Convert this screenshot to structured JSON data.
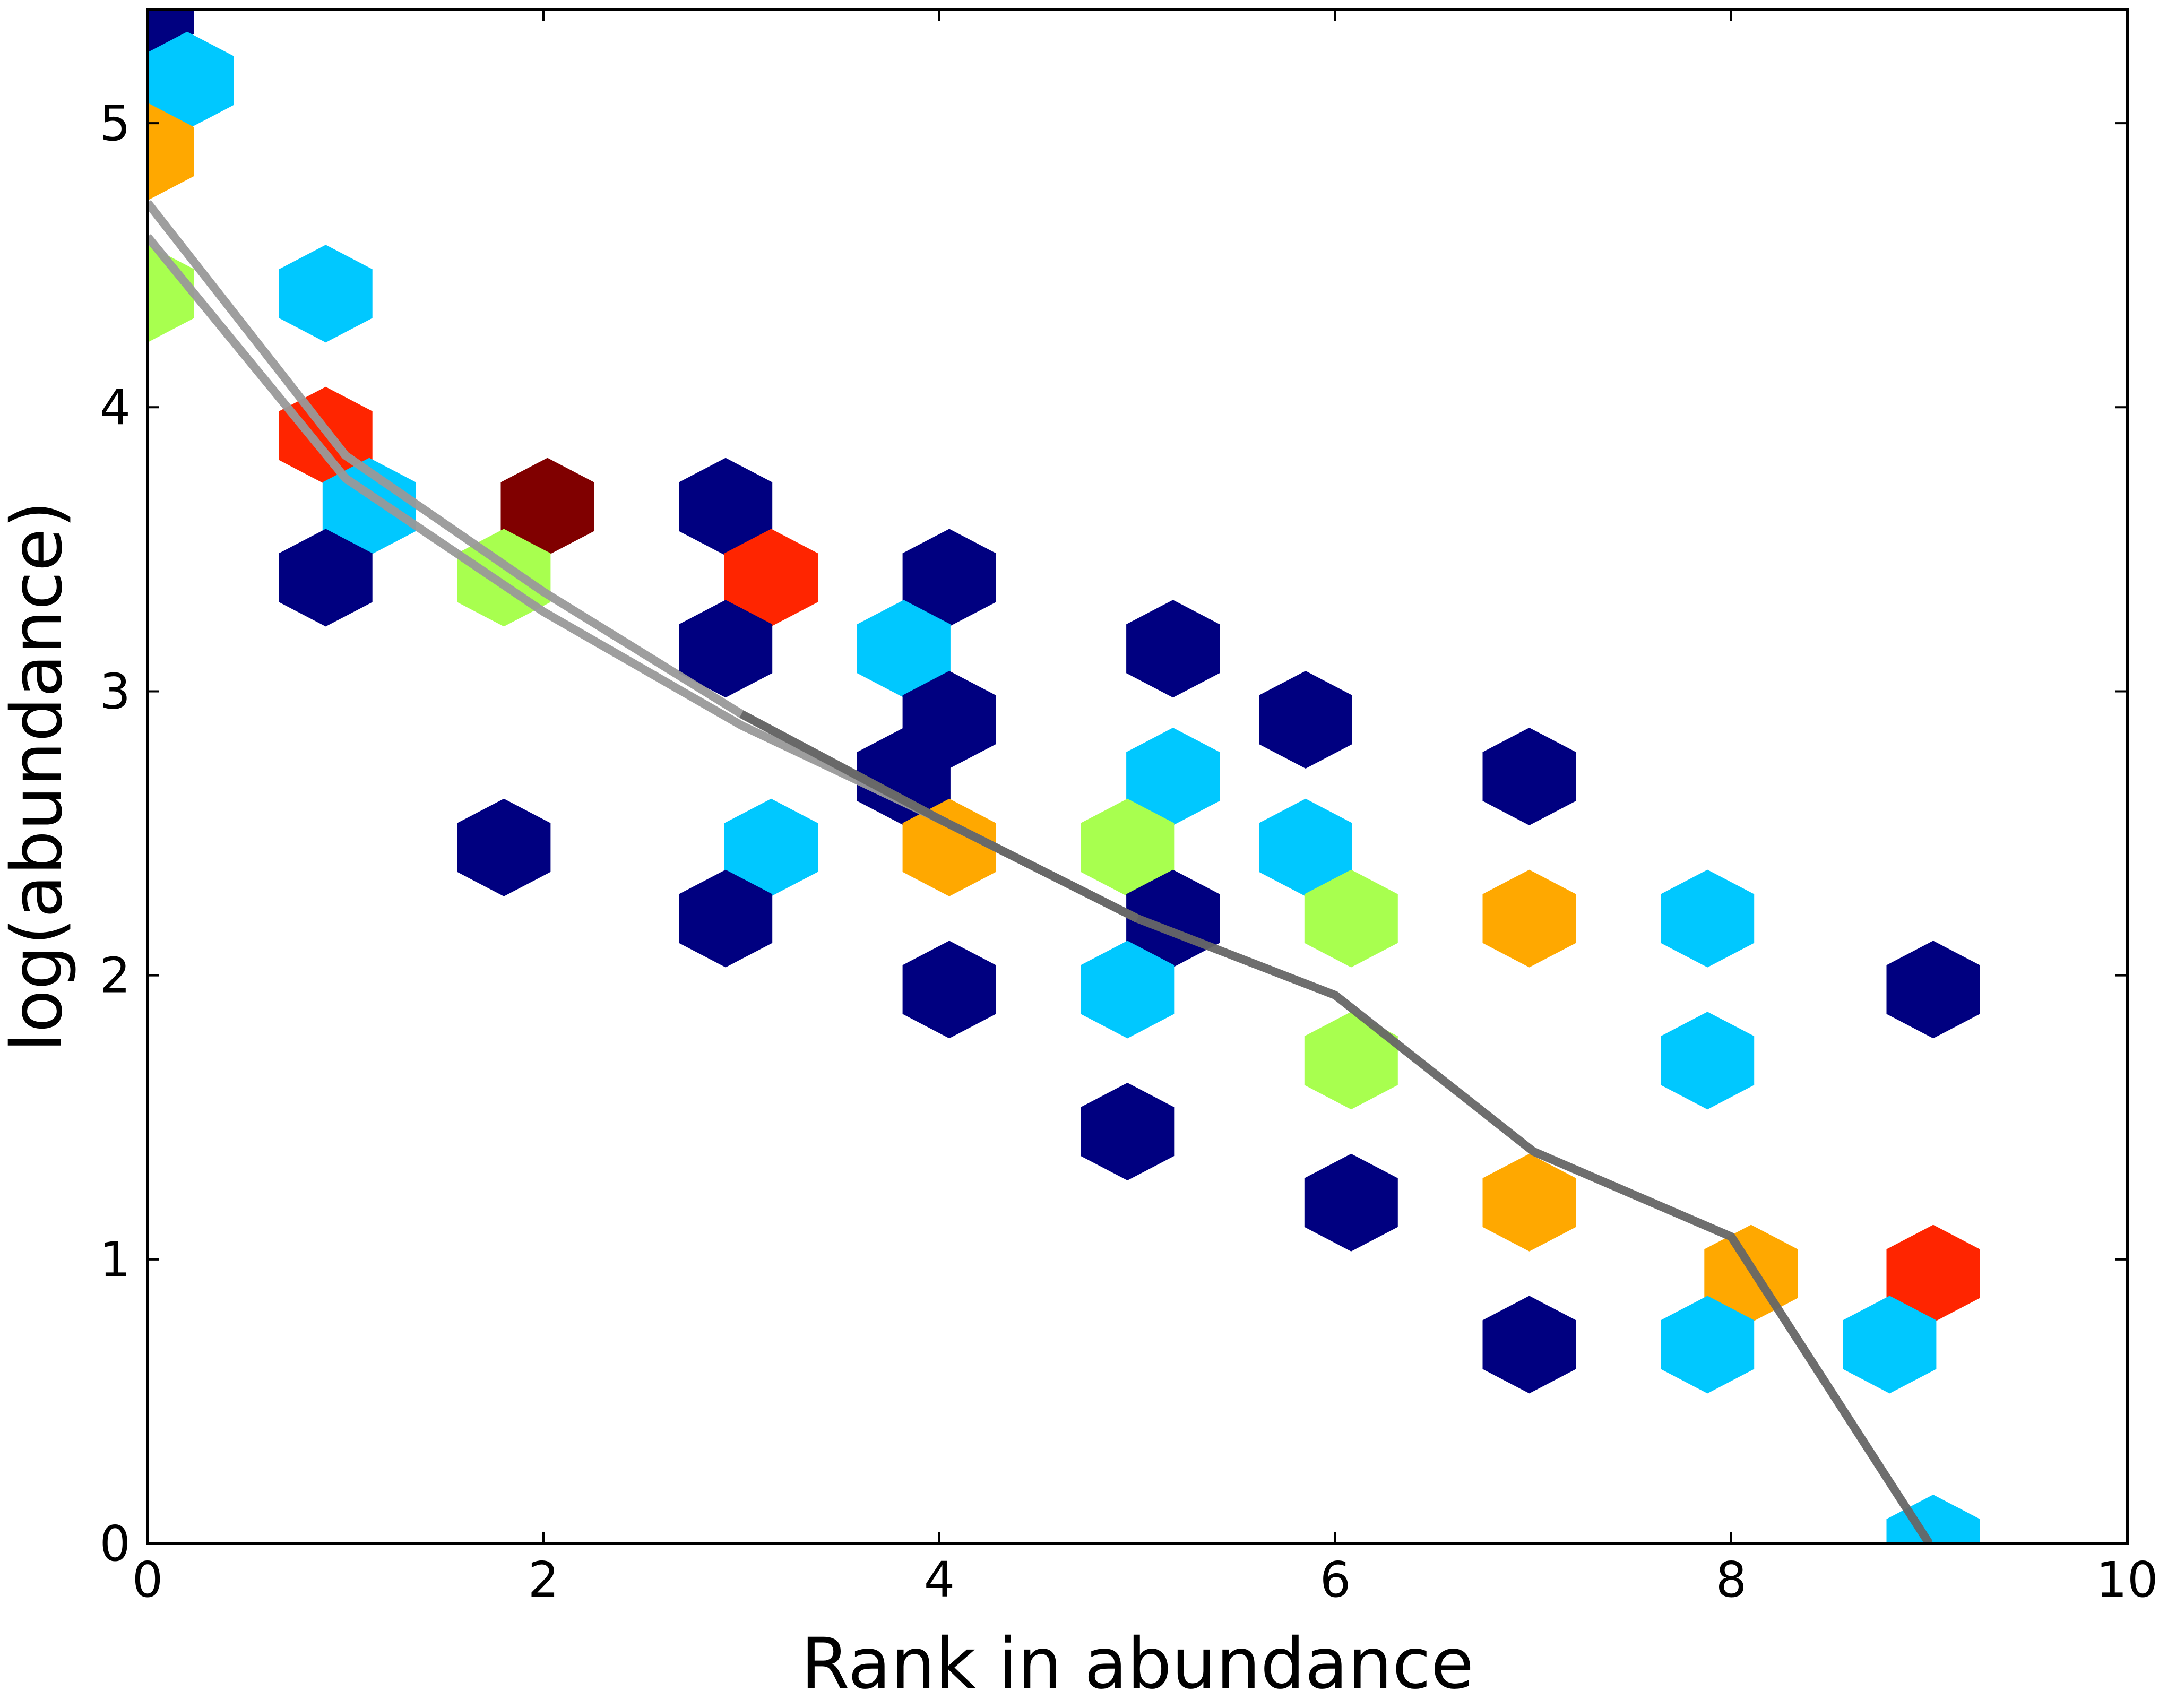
{
  "chart_data": {
    "type": "hexbin",
    "xlabel": "Rank in abundance",
    "ylabel": "log(abundance)",
    "xlim": [
      0,
      10
    ],
    "ylim": [
      0,
      5.4
    ],
    "xticks": [
      "0",
      "2",
      "4",
      "6",
      "8",
      "10"
    ],
    "yticks": [
      "0",
      "1",
      "2",
      "3",
      "4",
      "5"
    ],
    "grid": false,
    "hexbins": [
      {
        "x": 0.0,
        "y": 5.4,
        "color": "#000080"
      },
      {
        "x": 0.2,
        "y": 5.15,
        "color": "#00c8ff"
      },
      {
        "x": 0.0,
        "y": 4.9,
        "color": "#ffa800"
      },
      {
        "x": 0.0,
        "y": 4.4,
        "color": "#a8ff4f"
      },
      {
        "x": 0.9,
        "y": 4.4,
        "color": "#00c8ff"
      },
      {
        "x": 0.9,
        "y": 3.9,
        "color": "#ff2500"
      },
      {
        "x": 1.12,
        "y": 3.65,
        "color": "#00c8ff"
      },
      {
        "x": 0.9,
        "y": 3.4,
        "color": "#000080"
      },
      {
        "x": 2.02,
        "y": 3.65,
        "color": "#800000"
      },
      {
        "x": 1.8,
        "y": 3.4,
        "color": "#a8ff4f"
      },
      {
        "x": 1.8,
        "y": 2.45,
        "color": "#000080"
      },
      {
        "x": 2.92,
        "y": 3.65,
        "color": "#000080"
      },
      {
        "x": 3.15,
        "y": 3.4,
        "color": "#ff2500"
      },
      {
        "x": 2.92,
        "y": 3.15,
        "color": "#000080"
      },
      {
        "x": 3.15,
        "y": 2.45,
        "color": "#00c8ff"
      },
      {
        "x": 2.92,
        "y": 2.2,
        "color": "#000080"
      },
      {
        "x": 4.05,
        "y": 3.4,
        "color": "#000080"
      },
      {
        "x": 3.82,
        "y": 3.15,
        "color": "#00c8ff"
      },
      {
        "x": 4.05,
        "y": 2.9,
        "color": "#000080"
      },
      {
        "x": 3.82,
        "y": 2.7,
        "color": "#000080"
      },
      {
        "x": 4.05,
        "y": 2.45,
        "color": "#ffa800"
      },
      {
        "x": 4.05,
        "y": 1.95,
        "color": "#000080"
      },
      {
        "x": 5.18,
        "y": 3.15,
        "color": "#000080"
      },
      {
        "x": 5.18,
        "y": 2.7,
        "color": "#00c8ff"
      },
      {
        "x": 4.95,
        "y": 2.45,
        "color": "#a8ff4f"
      },
      {
        "x": 5.18,
        "y": 2.2,
        "color": "#000080"
      },
      {
        "x": 4.95,
        "y": 1.95,
        "color": "#00c8ff"
      },
      {
        "x": 4.95,
        "y": 1.45,
        "color": "#000080"
      },
      {
        "x": 5.85,
        "y": 2.9,
        "color": "#000080"
      },
      {
        "x": 5.85,
        "y": 2.45,
        "color": "#00c8ff"
      },
      {
        "x": 6.08,
        "y": 2.2,
        "color": "#a8ff4f"
      },
      {
        "x": 6.08,
        "y": 1.7,
        "color": "#a8ff4f"
      },
      {
        "x": 6.08,
        "y": 1.2,
        "color": "#000080"
      },
      {
        "x": 6.98,
        "y": 2.7,
        "color": "#000080"
      },
      {
        "x": 6.98,
        "y": 2.2,
        "color": "#ffa800"
      },
      {
        "x": 6.98,
        "y": 1.2,
        "color": "#ffa800"
      },
      {
        "x": 6.98,
        "y": 0.7,
        "color": "#000080"
      },
      {
        "x": 7.88,
        "y": 2.2,
        "color": "#00c8ff"
      },
      {
        "x": 7.88,
        "y": 1.7,
        "color": "#00c8ff"
      },
      {
        "x": 8.1,
        "y": 0.95,
        "color": "#ffa800"
      },
      {
        "x": 7.88,
        "y": 0.7,
        "color": "#00c8ff"
      },
      {
        "x": 9.02,
        "y": 1.95,
        "color": "#000080"
      },
      {
        "x": 9.02,
        "y": 0.95,
        "color": "#ff2500"
      },
      {
        "x": 8.8,
        "y": 0.7,
        "color": "#00c8ff"
      },
      {
        "x": 9.02,
        "y": 0.0,
        "color": "#00c8ff"
      }
    ],
    "lines": [
      {
        "color": "#999999",
        "x": [
          0,
          1,
          2,
          3,
          4,
          5
        ],
        "y": [
          4.72,
          3.83,
          3.35,
          2.92,
          2.55,
          2.2
        ]
      },
      {
        "color": "#999999",
        "x": [
          0,
          1,
          2,
          3,
          4,
          5
        ],
        "y": [
          4.6,
          3.75,
          3.28,
          2.88,
          2.55,
          2.2
        ]
      },
      {
        "color": "#666666",
        "x": [
          3,
          4,
          5,
          6,
          7,
          8,
          9
        ],
        "y": [
          2.92,
          2.55,
          2.2,
          1.93,
          1.38,
          1.08,
          0.0
        ]
      }
    ]
  }
}
